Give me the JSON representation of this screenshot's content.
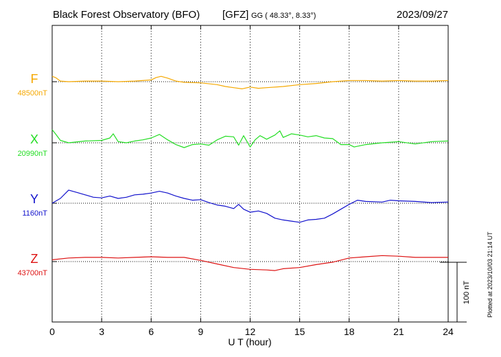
{
  "header": {
    "title": "Black Forest Observatory (BFO)",
    "institute": "[GFZ]",
    "coords": "GG ( 48.33°,   8.33°)",
    "date": "2023/09/27"
  },
  "scale_bar_label": "100 nT",
  "plotted_note": "Plotted at 2023/10/03 21:14 UT",
  "chart_data": {
    "type": "line",
    "title": "Black Forest Observatory (BFO)",
    "xlabel": "U T (hour)",
    "ylabel": "",
    "xlim": [
      0,
      24
    ],
    "x_ticks": [
      0,
      3,
      6,
      9,
      12,
      15,
      18,
      21,
      24
    ],
    "x_tick_labels": [
      "0",
      "3",
      "6",
      "9",
      "12",
      "15",
      "18",
      "21",
      "24"
    ],
    "y_scale_nT_per_bar": 100,
    "grid": true,
    "series": [
      {
        "name": "F",
        "baseline_label": "48500nT",
        "baseline_nT": 48500,
        "color": "#f5a800",
        "points": [
          [
            0,
            9
          ],
          [
            0.2,
            7
          ],
          [
            0.5,
            1
          ],
          [
            1,
            0
          ],
          [
            2,
            1
          ],
          [
            3,
            1
          ],
          [
            4,
            0
          ],
          [
            5,
            1
          ],
          [
            6,
            3
          ],
          [
            6.3,
            7
          ],
          [
            6.6,
            9
          ],
          [
            7,
            6
          ],
          [
            7.5,
            1
          ],
          [
            8,
            -1
          ],
          [
            9,
            -2
          ],
          [
            10,
            -5
          ],
          [
            10.5,
            -8
          ],
          [
            11,
            -10
          ],
          [
            11.5,
            -12
          ],
          [
            12,
            -9
          ],
          [
            12.5,
            -11
          ],
          [
            13,
            -10
          ],
          [
            14,
            -8
          ],
          [
            15,
            -5
          ],
          [
            16,
            -3
          ],
          [
            17,
            0
          ],
          [
            18,
            2
          ],
          [
            19,
            2
          ],
          [
            20,
            1
          ],
          [
            21,
            2
          ],
          [
            22,
            1
          ],
          [
            23,
            1
          ],
          [
            24,
            2
          ]
        ]
      },
      {
        "name": "X",
        "baseline_label": "20990nT",
        "baseline_nT": 20990,
        "color": "#22dd22",
        "points": [
          [
            0,
            22
          ],
          [
            0.2,
            15
          ],
          [
            0.5,
            4
          ],
          [
            1,
            0
          ],
          [
            2,
            3
          ],
          [
            3,
            4
          ],
          [
            3.5,
            8
          ],
          [
            3.7,
            15
          ],
          [
            4,
            2
          ],
          [
            4.5,
            0
          ],
          [
            5,
            3
          ],
          [
            5.5,
            5
          ],
          [
            6,
            8
          ],
          [
            6.5,
            14
          ],
          [
            7,
            5
          ],
          [
            7.5,
            -3
          ],
          [
            8,
            -8
          ],
          [
            8.5,
            -3
          ],
          [
            9,
            -2
          ],
          [
            9.5,
            -4
          ],
          [
            10,
            5
          ],
          [
            10.5,
            11
          ],
          [
            11,
            10
          ],
          [
            11.3,
            -4
          ],
          [
            11.6,
            12
          ],
          [
            12,
            -7
          ],
          [
            12.3,
            5
          ],
          [
            12.6,
            12
          ],
          [
            13,
            6
          ],
          [
            13.5,
            13
          ],
          [
            13.8,
            20
          ],
          [
            14,
            9
          ],
          [
            14.5,
            15
          ],
          [
            15,
            13
          ],
          [
            15.5,
            10
          ],
          [
            16,
            12
          ],
          [
            16.5,
            8
          ],
          [
            17,
            7
          ],
          [
            17.5,
            -3
          ],
          [
            18,
            -3
          ],
          [
            18.3,
            -7
          ],
          [
            19,
            -3
          ],
          [
            20,
            0
          ],
          [
            21,
            2
          ],
          [
            22,
            -2
          ],
          [
            23,
            2
          ],
          [
            24,
            3
          ]
        ]
      },
      {
        "name": "Y",
        "baseline_label": "1160nT",
        "baseline_nT": 1160,
        "color": "#1010cc",
        "points": [
          [
            0,
            0
          ],
          [
            0.5,
            8
          ],
          [
            1,
            22
          ],
          [
            1.5,
            18
          ],
          [
            2,
            14
          ],
          [
            2.5,
            10
          ],
          [
            3,
            9
          ],
          [
            3.5,
            12
          ],
          [
            4,
            8
          ],
          [
            4.5,
            10
          ],
          [
            5,
            14
          ],
          [
            5.5,
            15
          ],
          [
            6,
            17
          ],
          [
            6.5,
            20
          ],
          [
            7,
            17
          ],
          [
            7.5,
            12
          ],
          [
            8,
            8
          ],
          [
            8.5,
            5
          ],
          [
            9,
            6
          ],
          [
            9.5,
            1
          ],
          [
            10,
            -3
          ],
          [
            10.5,
            -5
          ],
          [
            11,
            -9
          ],
          [
            11.3,
            -2
          ],
          [
            11.6,
            -10
          ],
          [
            12,
            -15
          ],
          [
            12.5,
            -13
          ],
          [
            13,
            -17
          ],
          [
            13.5,
            -25
          ],
          [
            14,
            -28
          ],
          [
            14.5,
            -30
          ],
          [
            15,
            -32
          ],
          [
            15.5,
            -28
          ],
          [
            16,
            -27
          ],
          [
            16.5,
            -25
          ],
          [
            17,
            -18
          ],
          [
            17.5,
            -10
          ],
          [
            18,
            -2
          ],
          [
            18.5,
            5
          ],
          [
            19,
            3
          ],
          [
            20,
            2
          ],
          [
            20.5,
            5
          ],
          [
            21,
            4
          ],
          [
            22,
            3
          ],
          [
            23,
            1
          ],
          [
            24,
            2
          ]
        ]
      },
      {
        "name": "Z",
        "baseline_label": "43700nT",
        "baseline_nT": 43700,
        "color": "#dd1111",
        "points": [
          [
            0,
            3
          ],
          [
            1,
            6
          ],
          [
            2,
            7
          ],
          [
            3,
            7
          ],
          [
            4,
            6
          ],
          [
            5,
            7
          ],
          [
            6,
            8
          ],
          [
            7,
            7
          ],
          [
            8,
            7
          ],
          [
            9,
            2
          ],
          [
            10,
            -4
          ],
          [
            11,
            -10
          ],
          [
            12,
            -13
          ],
          [
            13,
            -14
          ],
          [
            13.5,
            -15
          ],
          [
            14,
            -12
          ],
          [
            15,
            -10
          ],
          [
            16,
            -5
          ],
          [
            17,
            -1
          ],
          [
            18,
            6
          ],
          [
            19,
            8
          ],
          [
            20,
            10
          ],
          [
            21,
            9
          ],
          [
            22,
            7
          ],
          [
            23,
            7
          ],
          [
            24,
            7
          ]
        ]
      }
    ]
  }
}
